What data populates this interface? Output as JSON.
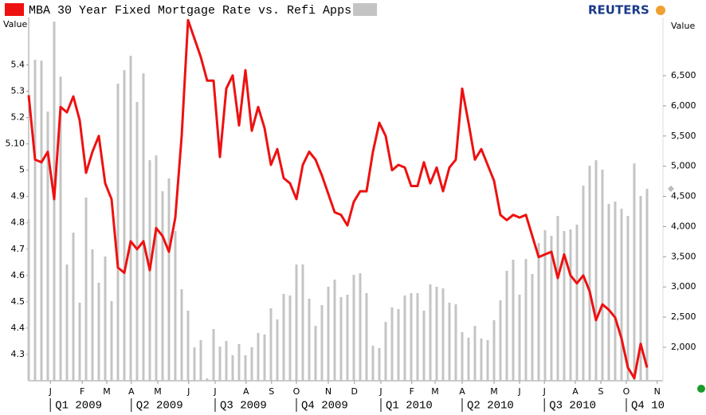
{
  "chart_data": {
    "type": "line-bar",
    "title": "MBA 30 Year Fixed Mortgage Rate vs. Refi Apps",
    "brand": "REUTERS",
    "y_label": "Value",
    "y2_label": "Value",
    "x": [
      0,
      1,
      2,
      3,
      4,
      5,
      6,
      7,
      8,
      9,
      10,
      11,
      12,
      13,
      14,
      15,
      16,
      17,
      18,
      19,
      20,
      21,
      22,
      23,
      24,
      25,
      26,
      27,
      28,
      29,
      30,
      31,
      32,
      33,
      34,
      35,
      36,
      37,
      38,
      39,
      40,
      41,
      42,
      43,
      44,
      45,
      46,
      47,
      48,
      49,
      50,
      51,
      52,
      53,
      54,
      55,
      56,
      57,
      58,
      59,
      60,
      61,
      62,
      63,
      64,
      65,
      66,
      67,
      68,
      69,
      70,
      71,
      72,
      73,
      74,
      75,
      76,
      77,
      78,
      79,
      80,
      81,
      82,
      83,
      84,
      85,
      86,
      87,
      88,
      89,
      90,
      91,
      92,
      93,
      94,
      95,
      96,
      97
    ],
    "xlim": [
      0,
      99.5
    ],
    "xticks": [
      {
        "value": 3.4,
        "label": "J"
      },
      {
        "value": 8.4,
        "label": "F"
      },
      {
        "value": 12.25,
        "label": "M"
      },
      {
        "value": 16.1,
        "label": "A"
      },
      {
        "value": 20.25,
        "label": "M"
      },
      {
        "value": 25.1,
        "label": "J"
      },
      {
        "value": 29.25,
        "label": "J"
      },
      {
        "value": 34.1,
        "label": "A"
      },
      {
        "value": 38.1,
        "label": "S"
      },
      {
        "value": 42,
        "label": "O"
      },
      {
        "value": 47,
        "label": "N"
      },
      {
        "value": 51.1,
        "label": "D"
      },
      {
        "value": 55.25,
        "label": "J"
      },
      {
        "value": 60.1,
        "label": "F"
      },
      {
        "value": 63.75,
        "label": "M"
      },
      {
        "value": 68,
        "label": "A"
      },
      {
        "value": 73,
        "label": "M"
      },
      {
        "value": 77,
        "label": "J"
      },
      {
        "value": 80.9,
        "label": "J"
      },
      {
        "value": 85.75,
        "label": "A"
      },
      {
        "value": 89.75,
        "label": "S"
      },
      {
        "value": 93.75,
        "label": "O"
      },
      {
        "value": 98.6,
        "label": "N"
      }
    ],
    "quarters": [
      "Q1 2009",
      "Q2 2009",
      "Q3 2009",
      "Q4 2009",
      "Q1 2010",
      "Q2 2010",
      "Q3 2010",
      "Q4 10"
    ],
    "ylim": [
      4.2,
      5.58
    ],
    "yticks": [
      5.4,
      5.3,
      5.2,
      {
        "value": 5.1,
        "label": "5.10"
      },
      5,
      4.9,
      4.8,
      4.7,
      4.6,
      4.5,
      4.4,
      4.3
    ],
    "y2lim": [
      1446,
      7463
    ],
    "y2ticks": [
      {
        "value": 2000,
        "label": "2,000"
      },
      {
        "value": 2500,
        "label": "2,500"
      },
      {
        "value": 3000,
        "label": "3,000"
      },
      {
        "value": 3500,
        "label": "3,500"
      },
      {
        "value": 4000,
        "label": "4,000"
      },
      {
        "value": 4500,
        "label": "4,500"
      },
      {
        "value": 5000,
        "label": "5,000"
      },
      {
        "value": 5500,
        "label": "5,500"
      },
      {
        "value": 6000,
        "label": "6,000"
      },
      {
        "value": 6500,
        "label": "6,500"
      }
    ],
    "series": [
      {
        "color": "#ee1111",
        "values": [
          5.285,
          5.04,
          5.03,
          5.07,
          4.89,
          5.24,
          5.22,
          5.28,
          5.19,
          4.99,
          5.07,
          5.13,
          4.95,
          4.89,
          4.63,
          4.61,
          4.73,
          4.7,
          4.73,
          4.62,
          4.78,
          4.75,
          4.69,
          4.82,
          5.13,
          5.57,
          5.5,
          5.43,
          5.34,
          5.34,
          5.05,
          5.31,
          5.36,
          5.17,
          5.38,
          5.15,
          5.24,
          5.16,
          5.02,
          5.08,
          4.97,
          4.95,
          4.89,
          5.02,
          5.07,
          5.04,
          4.98,
          4.91,
          4.84,
          4.83,
          4.79,
          4.88,
          4.92,
          4.92,
          5.07,
          5.18,
          5.13,
          5.0,
          5.02,
          5.01,
          4.94,
          4.94,
          5.03,
          4.95,
          5.01,
          4.92,
          5.01,
          5.04,
          5.31,
          5.18,
          5.04,
          5.08,
          5.02,
          4.96,
          4.83,
          4.81,
          4.83,
          4.82,
          4.83,
          4.75,
          4.67,
          4.68,
          4.69,
          4.59,
          4.68,
          4.6,
          4.57,
          4.6,
          4.54,
          4.43,
          4.49,
          4.47,
          4.44,
          4.36,
          4.25,
          4.21,
          4.34,
          4.25
        ]
      },
      {
        "color": "#c4c4c4",
        "axis": "y2",
        "values": [
          4124,
          6762,
          6749,
          5905,
          7395,
          6485,
          3372,
          3900,
          2739,
          4480,
          3623,
          3069,
          3504,
          2765,
          6367,
          6591,
          6830,
          6063,
          6538,
          5100,
          5179,
          4586,
          4797,
          3926,
          2963,
          2607,
          2000,
          2119,
          1486,
          2303,
          2013,
          2106,
          1868,
          2053,
          1868,
          2000,
          2237,
          2211,
          2646,
          2462,
          2884,
          2858,
          3372,
          3372,
          2805,
          2356,
          2699,
          3003,
          3121,
          2831,
          2871,
          3200,
          3227,
          2897,
          2026,
          1987,
          2422,
          2660,
          2633,
          2858,
          2897,
          2897,
          2607,
          3042,
          3003,
          2976,
          2739,
          2712,
          2251,
          2158,
          2356,
          2145,
          2119,
          2449,
          2778,
          3266,
          3451,
          2871,
          3464,
          3214,
          3728,
          3939,
          3847,
          4177,
          3926,
          3953,
          4032,
          4678,
          5008,
          5100,
          4942,
          4375,
          4414,
          4296,
          4177,
          5047,
          4507,
          4625
        ]
      }
    ]
  }
}
